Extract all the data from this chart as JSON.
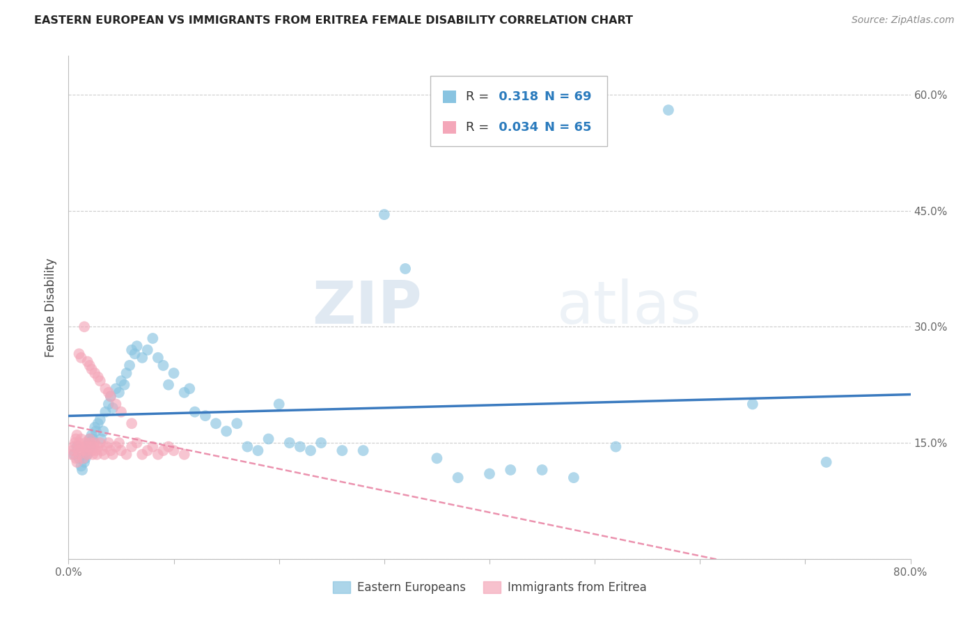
{
  "title": "EASTERN EUROPEAN VS IMMIGRANTS FROM ERITREA FEMALE DISABILITY CORRELATION CHART",
  "source": "Source: ZipAtlas.com",
  "ylabel": "Female Disability",
  "xlim": [
    0,
    0.8
  ],
  "ylim": [
    0,
    0.65
  ],
  "background_color": "#ffffff",
  "watermark_zip": "ZIP",
  "watermark_atlas": "atlas",
  "blue_color": "#89c4e1",
  "pink_color": "#f4a7b9",
  "blue_line_color": "#3a7abf",
  "pink_line_color": "#e87fa0",
  "legend_blue_r": "R = ",
  "legend_blue_rv": " 0.318",
  "legend_blue_n": "N = 69",
  "legend_pink_r": "R = ",
  "legend_pink_rv": " 0.034",
  "legend_pink_n": "N = 65",
  "blue_x": [
    0.005,
    0.008,
    0.01,
    0.012,
    0.013,
    0.015,
    0.016,
    0.017,
    0.018,
    0.019,
    0.02,
    0.021,
    0.022,
    0.023,
    0.025,
    0.026,
    0.028,
    0.03,
    0.031,
    0.033,
    0.035,
    0.038,
    0.04,
    0.042,
    0.045,
    0.048,
    0.05,
    0.053,
    0.055,
    0.058,
    0.06,
    0.063,
    0.065,
    0.07,
    0.075,
    0.08,
    0.085,
    0.09,
    0.095,
    0.1,
    0.11,
    0.115,
    0.12,
    0.13,
    0.14,
    0.15,
    0.16,
    0.17,
    0.18,
    0.19,
    0.2,
    0.21,
    0.22,
    0.23,
    0.24,
    0.26,
    0.28,
    0.3,
    0.32,
    0.35,
    0.37,
    0.4,
    0.42,
    0.45,
    0.48,
    0.52,
    0.57,
    0.65,
    0.72
  ],
  "blue_y": [
    0.135,
    0.145,
    0.13,
    0.12,
    0.115,
    0.125,
    0.13,
    0.14,
    0.135,
    0.15,
    0.155,
    0.145,
    0.16,
    0.155,
    0.17,
    0.165,
    0.175,
    0.18,
    0.155,
    0.165,
    0.19,
    0.2,
    0.21,
    0.195,
    0.22,
    0.215,
    0.23,
    0.225,
    0.24,
    0.25,
    0.27,
    0.265,
    0.275,
    0.26,
    0.27,
    0.285,
    0.26,
    0.25,
    0.225,
    0.24,
    0.215,
    0.22,
    0.19,
    0.185,
    0.175,
    0.165,
    0.175,
    0.145,
    0.14,
    0.155,
    0.2,
    0.15,
    0.145,
    0.14,
    0.15,
    0.14,
    0.14,
    0.445,
    0.375,
    0.13,
    0.105,
    0.11,
    0.115,
    0.115,
    0.105,
    0.145,
    0.58,
    0.2,
    0.125
  ],
  "pink_x": [
    0.003,
    0.004,
    0.005,
    0.006,
    0.007,
    0.007,
    0.008,
    0.008,
    0.009,
    0.01,
    0.01,
    0.011,
    0.012,
    0.013,
    0.014,
    0.015,
    0.016,
    0.017,
    0.018,
    0.019,
    0.02,
    0.021,
    0.022,
    0.023,
    0.024,
    0.025,
    0.026,
    0.027,
    0.028,
    0.03,
    0.032,
    0.034,
    0.036,
    0.038,
    0.04,
    0.042,
    0.045,
    0.048,
    0.05,
    0.055,
    0.06,
    0.065,
    0.07,
    0.075,
    0.08,
    0.085,
    0.09,
    0.095,
    0.1,
    0.11,
    0.01,
    0.012,
    0.015,
    0.018,
    0.02,
    0.022,
    0.025,
    0.028,
    0.03,
    0.035,
    0.038,
    0.04,
    0.045,
    0.05,
    0.06
  ],
  "pink_y": [
    0.135,
    0.14,
    0.145,
    0.15,
    0.13,
    0.155,
    0.125,
    0.16,
    0.14,
    0.135,
    0.15,
    0.145,
    0.155,
    0.14,
    0.13,
    0.145,
    0.15,
    0.14,
    0.135,
    0.145,
    0.155,
    0.15,
    0.14,
    0.135,
    0.145,
    0.15,
    0.14,
    0.135,
    0.145,
    0.15,
    0.14,
    0.135,
    0.145,
    0.15,
    0.14,
    0.135,
    0.145,
    0.15,
    0.14,
    0.135,
    0.145,
    0.15,
    0.135,
    0.14,
    0.145,
    0.135,
    0.14,
    0.145,
    0.14,
    0.135,
    0.265,
    0.26,
    0.3,
    0.255,
    0.25,
    0.245,
    0.24,
    0.235,
    0.23,
    0.22,
    0.215,
    0.21,
    0.2,
    0.19,
    0.175
  ]
}
